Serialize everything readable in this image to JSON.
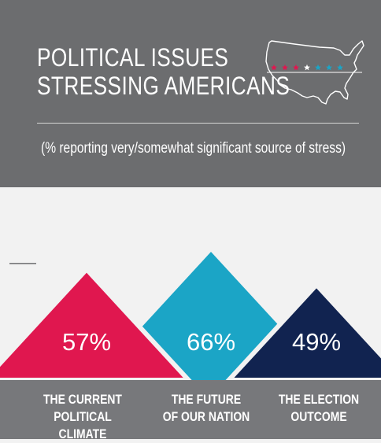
{
  "title_lines": [
    "POLITICAL ISSUES",
    "STRESSING AMERICANS"
  ],
  "subtitle": "(% reporting very/somewhat significant source of stress)",
  "icon": "us-map-stars-icon",
  "colors": {
    "header_bg": "#6c6d6f",
    "footer_bg": "#77787b",
    "page_bg": "#f2f2f2",
    "pink": "#e0174f",
    "teal": "#1ba5c6",
    "navy": "#112350",
    "star_red": "#e0174f",
    "star_white": "#ffffff",
    "star_blue": "#1ba5c6"
  },
  "chart_data": {
    "type": "bar",
    "categories": [
      "THE CURRENT POLITICAL CLIMATE",
      "THE FUTURE OF OUR NATION",
      "THE ELECTION OUTCOME"
    ],
    "category_lines": [
      [
        "THE CURRENT",
        "POLITICAL CLIMATE"
      ],
      [
        "THE FUTURE",
        "OF OUR NATION"
      ],
      [
        "THE ELECTION",
        "OUTCOME"
      ]
    ],
    "values": [
      57,
      66,
      49
    ],
    "value_labels": [
      "57%",
      "66%",
      "49%"
    ],
    "colors": [
      "#e0174f",
      "#1ba5c6",
      "#112350"
    ],
    "title": "POLITICAL ISSUES STRESSING AMERICANS",
    "subtitle": "(% reporting very/somewhat significant source of stress)",
    "reference_value": 60,
    "ylim": [
      0,
      66
    ],
    "grid": false
  }
}
